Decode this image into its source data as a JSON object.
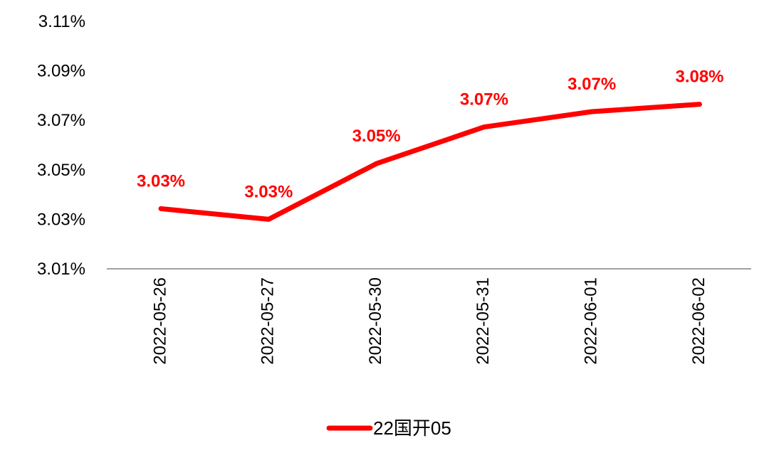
{
  "chart_data": {
    "type": "line",
    "title": "",
    "xlabel": "",
    "ylabel": "",
    "categories": [
      "2022-05-26",
      "2022-05-27",
      "2022-05-30",
      "2022-05-31",
      "2022-06-01",
      "2022-06-02"
    ],
    "series": [
      {
        "name": "22国开05",
        "values": [
          3.0343,
          3.03,
          3.0525,
          3.0673,
          3.0735,
          3.0765
        ],
        "data_labels": [
          "3.03%",
          "3.03%",
          "3.05%",
          "3.07%",
          "3.07%",
          "3.08%"
        ],
        "color": "#ff0000"
      }
    ],
    "ylim": [
      3.01,
      3.11
    ],
    "yticks": [
      3.01,
      3.03,
      3.05,
      3.07,
      3.09,
      3.11
    ],
    "ytick_labels": [
      "3.01%",
      "3.03%",
      "3.05%",
      "3.07%",
      "3.09%",
      "3.11%"
    ],
    "grid": false,
    "legend": "bottom-center",
    "colors": {
      "series": "#ff0000",
      "axis": "#808080",
      "text": "#000000"
    }
  }
}
